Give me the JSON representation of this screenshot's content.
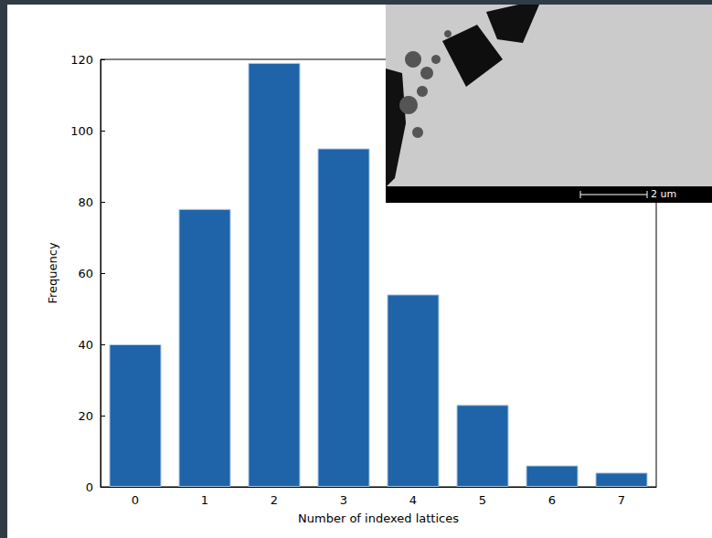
{
  "chart_data": {
    "type": "bar",
    "x_label": "Number of indexed lattices",
    "y_label": "Frequency",
    "categories": [
      "0",
      "1",
      "2",
      "3",
      "4",
      "5",
      "6",
      "7"
    ],
    "values": [
      40,
      78,
      119,
      95,
      54,
      23,
      6,
      4
    ],
    "color": "#1f63a8",
    "ylim": [
      0,
      120
    ],
    "yticks": [
      0,
      20,
      40,
      60,
      80,
      100,
      120
    ],
    "grid": false,
    "annotations": [
      "2 um"
    ]
  }
}
